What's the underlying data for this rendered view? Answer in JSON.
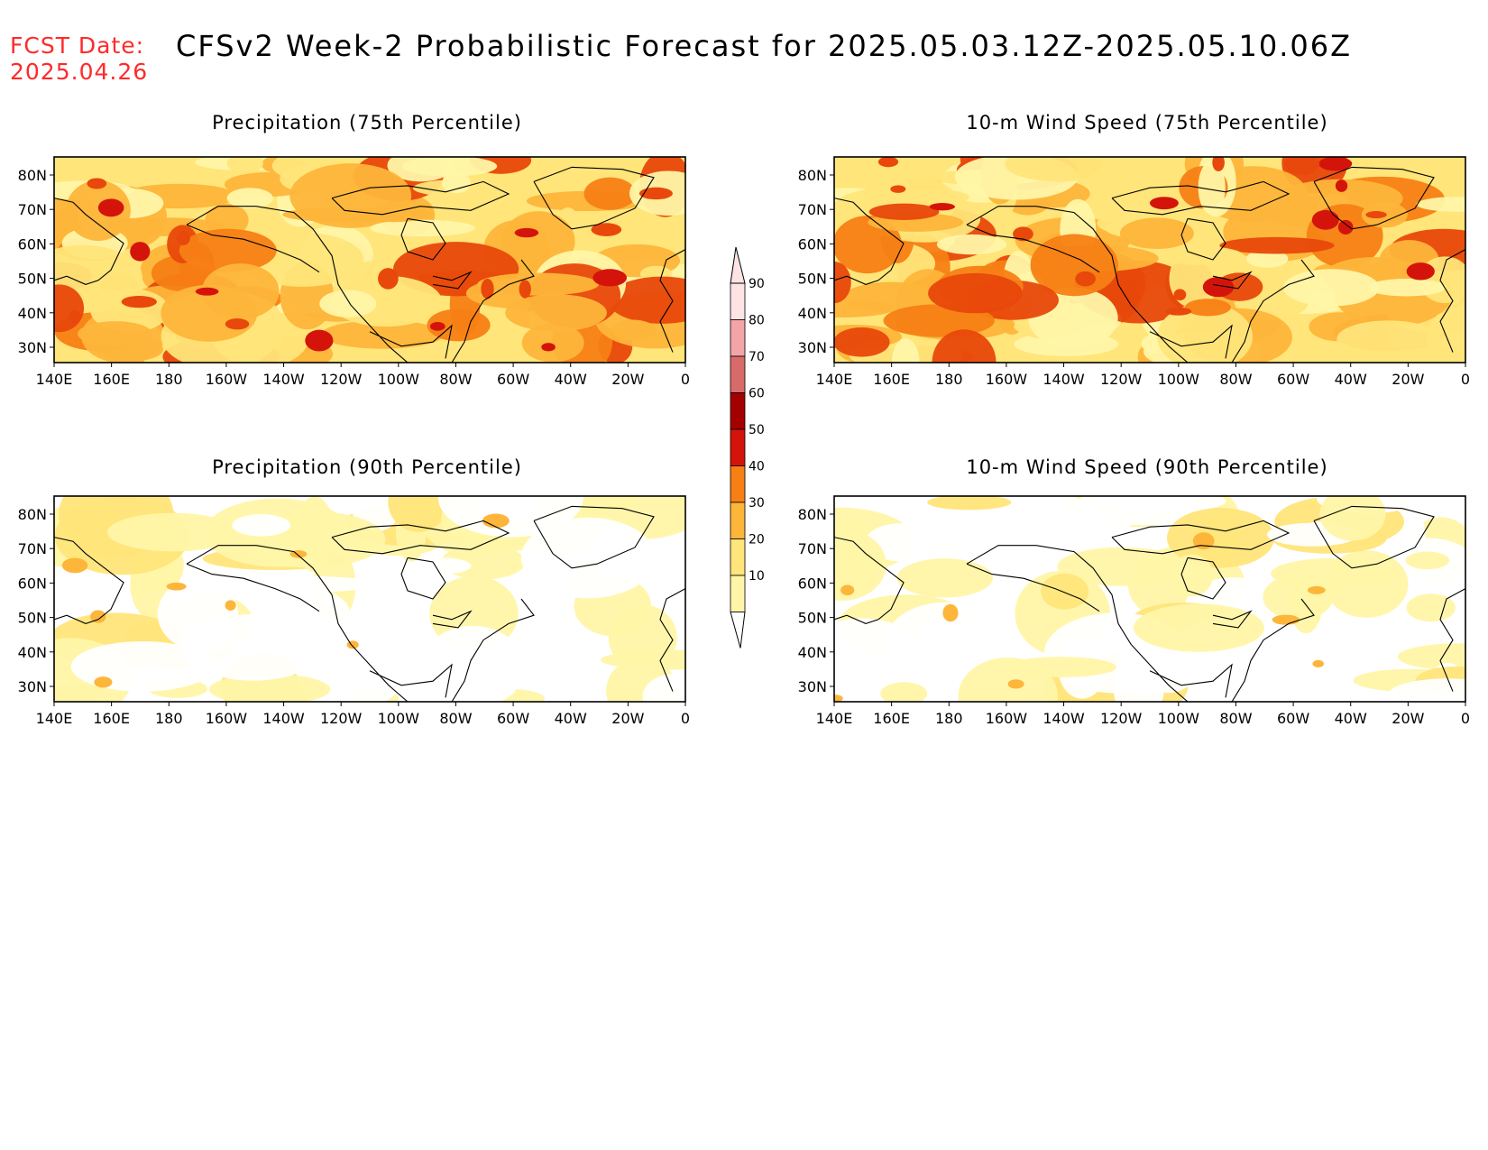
{
  "header": {
    "fcst_label_line1": "FCST Date:",
    "fcst_label_line2": "2025.04.26",
    "title": "CFSv2 Week-2 Probabilistic Forecast for 2025.05.03.12Z-2025.05.10.06Z"
  },
  "axes": {
    "lon_labels": [
      "140E",
      "160E",
      "180",
      "160W",
      "140W",
      "120W",
      "100W",
      "80W",
      "60W",
      "40W",
      "20W",
      "0"
    ],
    "lat_labels": [
      "80N",
      "70N",
      "60N",
      "50N",
      "40N",
      "30N"
    ]
  },
  "colors": {
    "white": "#ffffff",
    "light_yellow": "#fff5a8",
    "yellow": "#ffe57a",
    "light_orange": "#fdb53a",
    "orange": "#f77f14",
    "red_orange": "#e8480b",
    "red": "#d4140b",
    "dark_red": "#a50000",
    "rose": "#d86a6a",
    "pink": "#f2a4a8",
    "light_pink": "#fde3e3"
  },
  "colorbar": {
    "levels": [
      "10",
      "20",
      "30",
      "40",
      "50",
      "60",
      "70",
      "80",
      "90"
    ]
  },
  "panels": [
    {
      "id": "precip75",
      "title": "Precipitation (75th Percentile)",
      "intensity": "high"
    },
    {
      "id": "wind75",
      "title": "10-m Wind Speed (75th Percentile)",
      "intensity": "high"
    },
    {
      "id": "precip90",
      "title": "Precipitation (90th Percentile)",
      "intensity": "low"
    },
    {
      "id": "wind90",
      "title": "10-m Wind Speed (90th Percentile)",
      "intensity": "low"
    }
  ]
}
